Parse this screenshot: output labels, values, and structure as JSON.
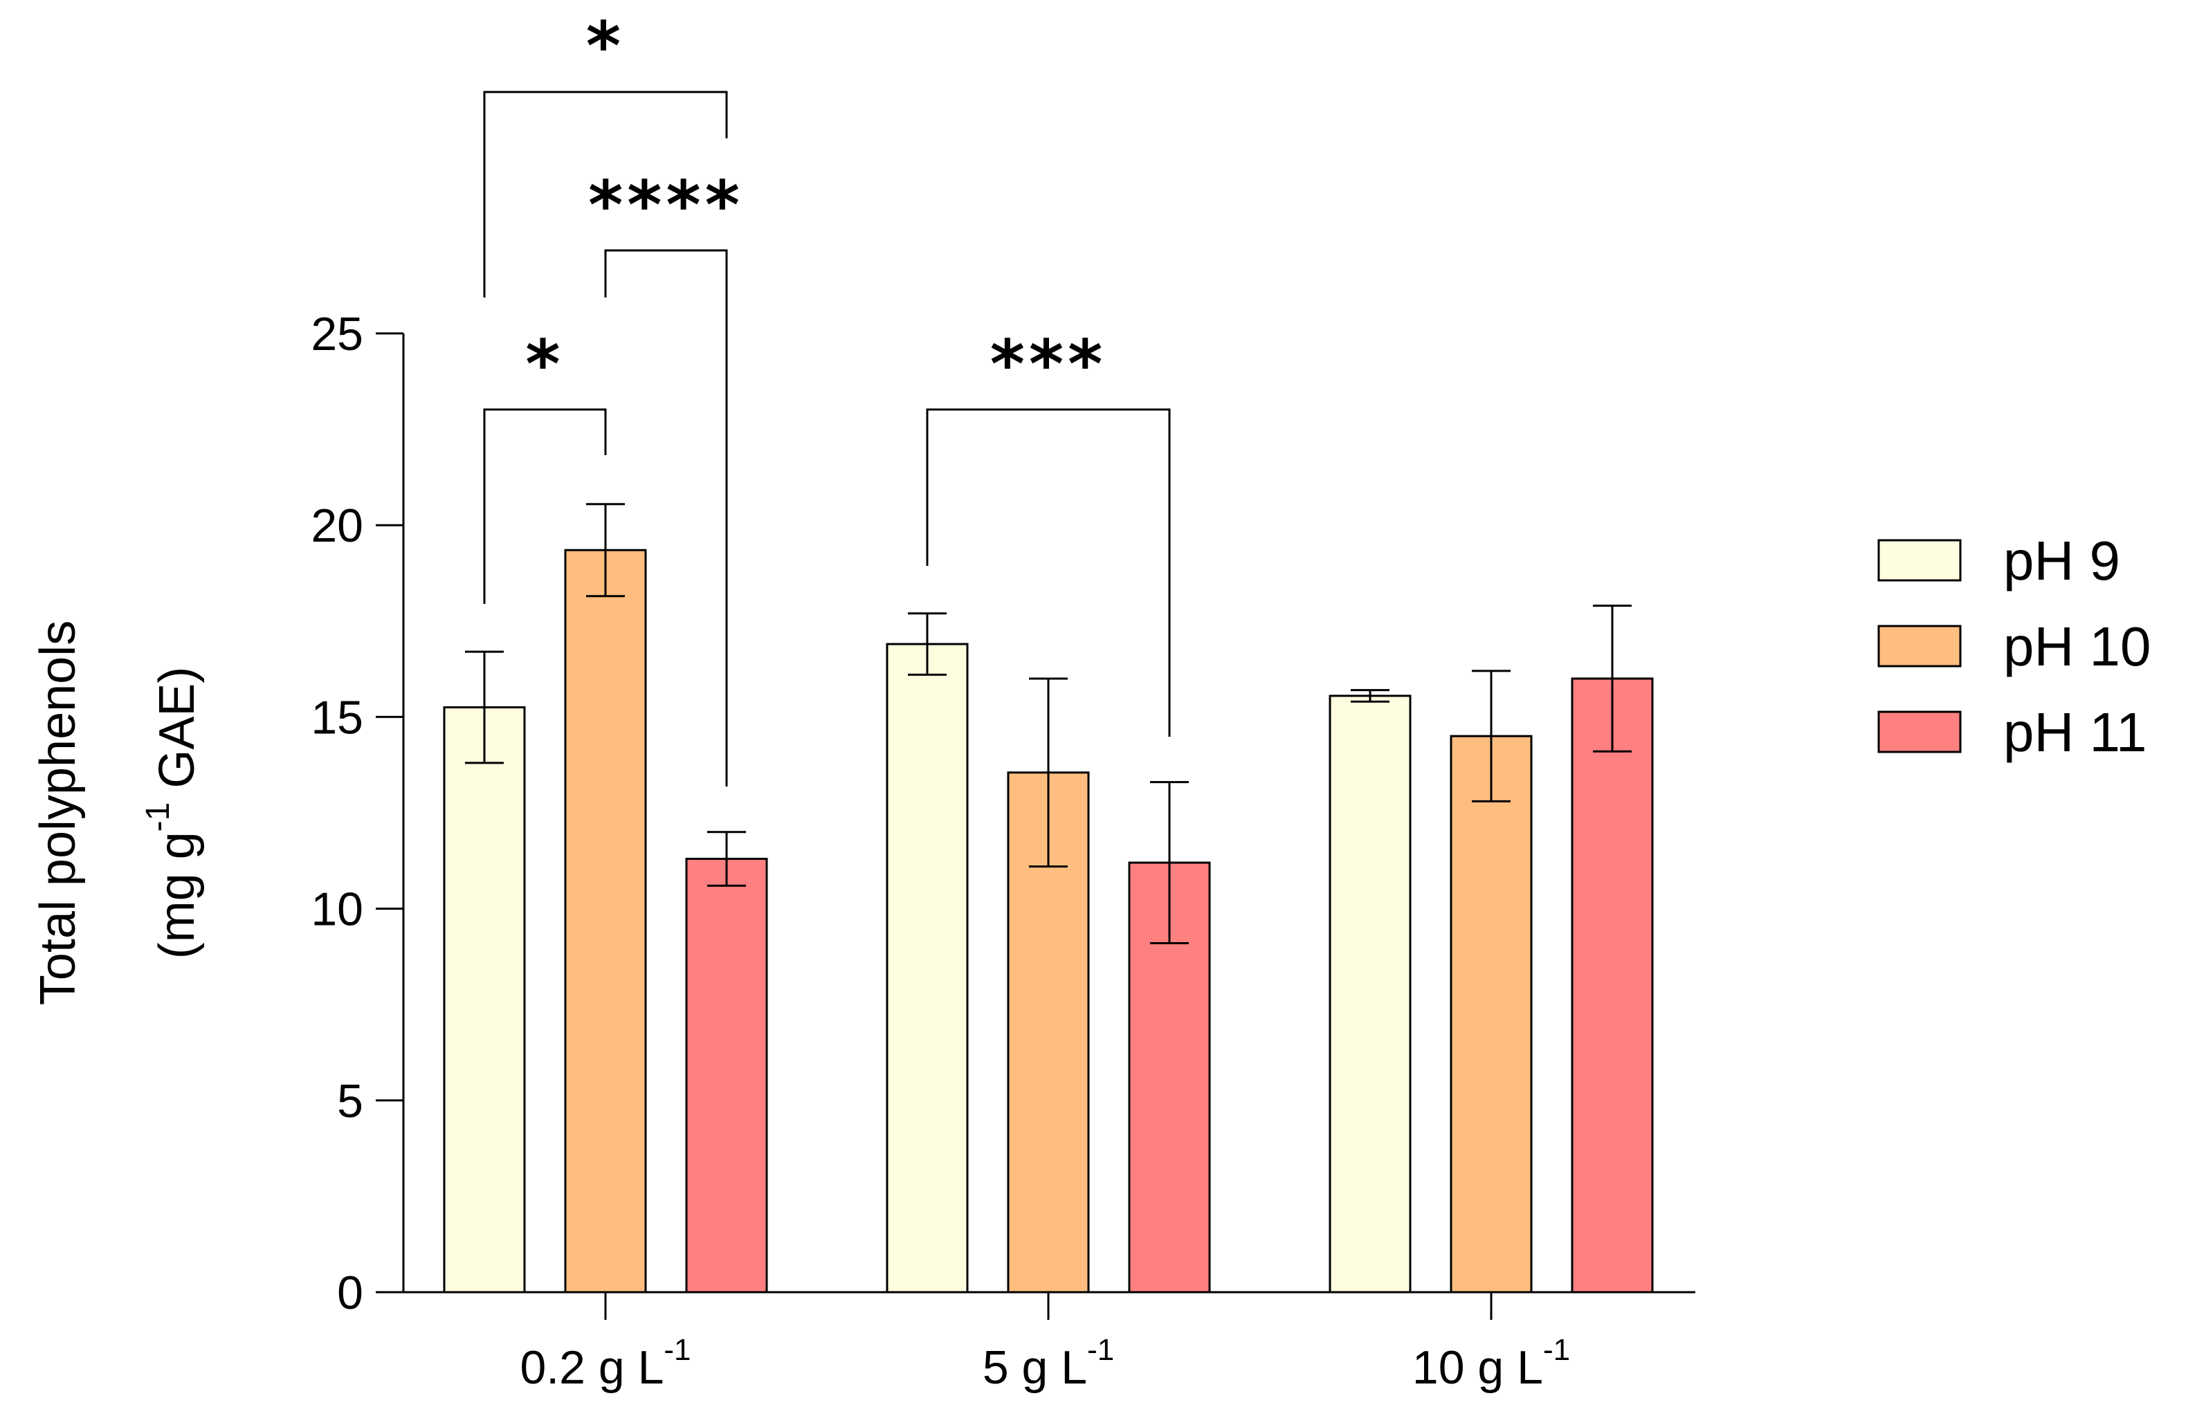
{
  "chart_data": {
    "type": "bar",
    "ylabel_line1": "Total polyphenols",
    "ylabel_line2_prefix": "(mg g",
    "ylabel_line2_sup": "-1",
    "ylabel_line2_suffix": " GAE)",
    "ylim": [
      0,
      25
    ],
    "yticks": [
      "0",
      "5",
      "10",
      "15",
      "20",
      "25"
    ],
    "grid": false,
    "legend_position": "right",
    "categories": [
      {
        "main": "0.2 g L",
        "sup": "-1"
      },
      {
        "main": "5 g L",
        "sup": "-1"
      },
      {
        "main": "10 g L",
        "sup": "-1"
      }
    ],
    "series": [
      {
        "name": "pH 9",
        "color": "#FFFDE0",
        "values": [
          15.25,
          16.9,
          15.55
        ],
        "errors": [
          1.45,
          0.8,
          0.15
        ]
      },
      {
        "name": "pH 10",
        "color": "#FFBE80",
        "values": [
          19.35,
          13.55,
          14.5
        ],
        "errors": [
          1.2,
          2.45,
          1.7
        ]
      },
      {
        "name": "pH 11",
        "color": "#FF8080",
        "values": [
          11.3,
          11.2,
          16.0
        ],
        "errors": [
          0.7,
          2.1,
          1.9
        ]
      }
    ],
    "significance": [
      {
        "label": "*",
        "category": 0,
        "from_series": 0,
        "to_series": 1
      },
      {
        "label": "*",
        "category": 0,
        "from_series": 0,
        "to_series": 2
      },
      {
        "label": "****",
        "category": 0,
        "from_series": 1,
        "to_series": 2
      },
      {
        "label": "***",
        "category": 1,
        "from_series": 0,
        "to_series": 2
      }
    ]
  }
}
